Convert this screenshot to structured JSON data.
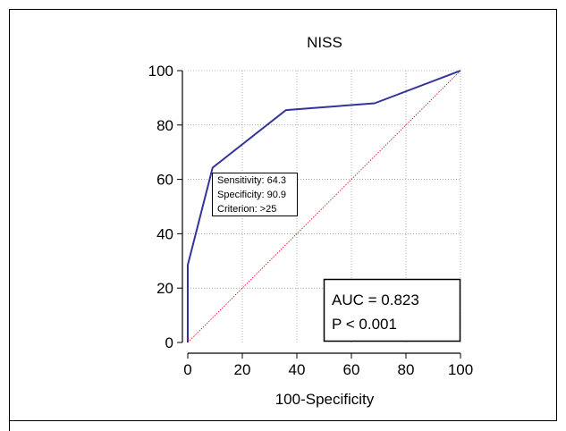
{
  "chart_data": {
    "type": "line",
    "title": "NISS",
    "xlabel": "100-Specificity",
    "ylabel": "",
    "xlim": [
      0,
      100
    ],
    "ylim": [
      0,
      100
    ],
    "x_ticks": [
      "0",
      "20",
      "40",
      "60",
      "80",
      "100"
    ],
    "y_ticks": [
      "0",
      "20",
      "40",
      "60",
      "80",
      "100"
    ],
    "grid": true,
    "series": [
      {
        "color": "#33339a",
        "points": [
          [
            0,
            0
          ],
          [
            0,
            28.5
          ],
          [
            9.1,
            64.3
          ],
          [
            36,
            85.5
          ],
          [
            68.5,
            88
          ],
          [
            100,
            100
          ]
        ]
      },
      {
        "color": "#cc0000",
        "style": "dotted",
        "points": [
          [
            0,
            0
          ],
          [
            100,
            100
          ]
        ]
      }
    ],
    "annotations": {
      "criterion_box": [
        "Sensitivity: 64.3",
        "Specificity: 90.9",
        "Criterion: >25"
      ],
      "auc_box": [
        "AUC = 0.823",
        "P < 0.001"
      ]
    }
  }
}
